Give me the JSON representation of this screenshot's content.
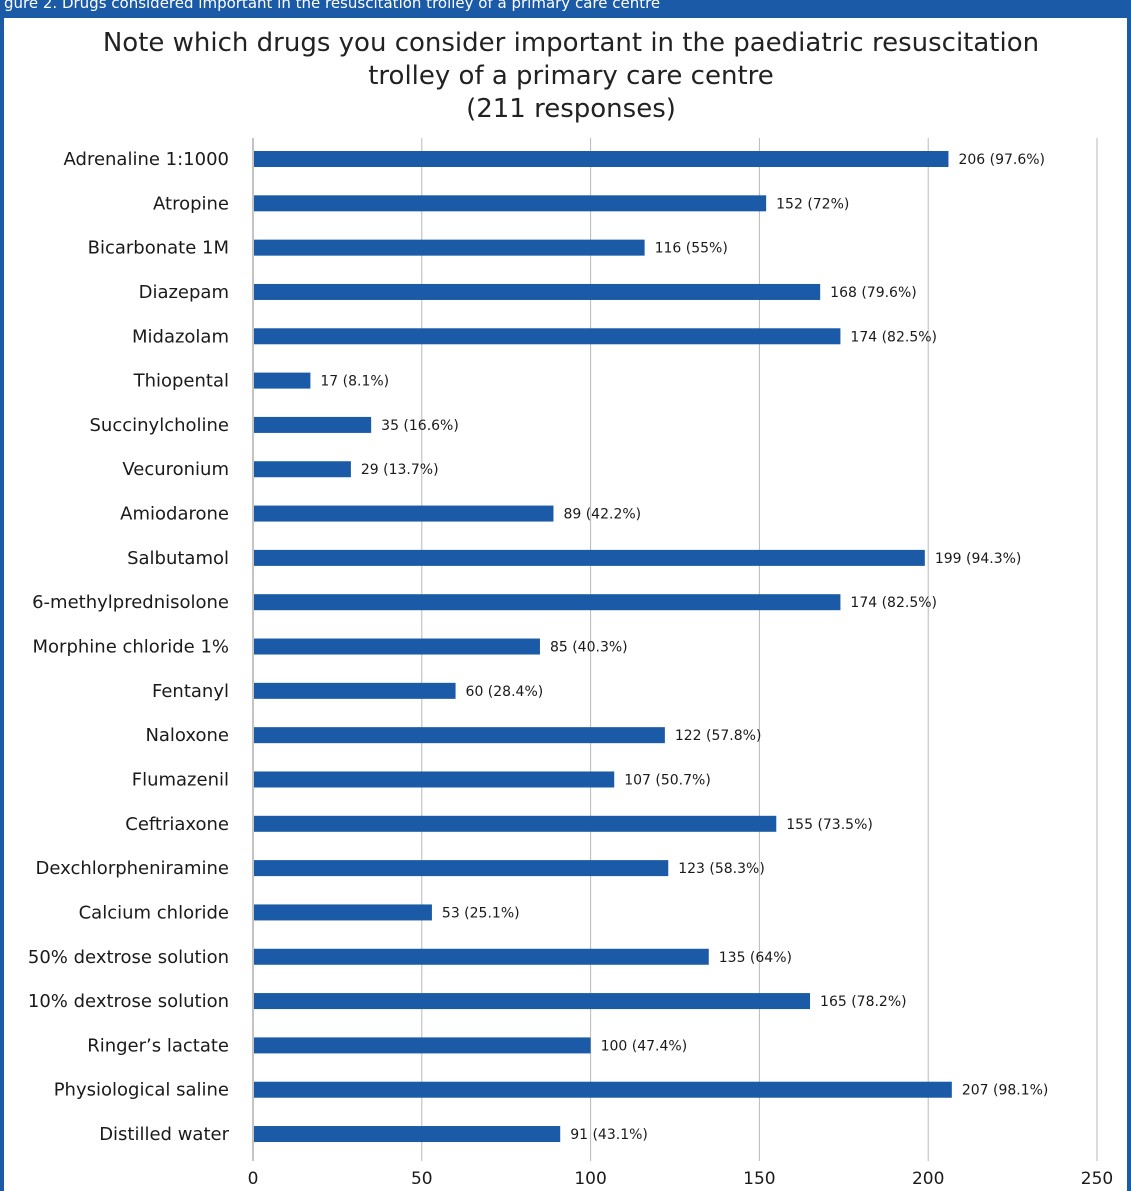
{
  "figure_caption": "gure 2. Drugs considered important in the resuscitation trolley of a primary care centre",
  "chart_data": {
    "type": "bar",
    "orientation": "horizontal",
    "title_lines": [
      "Note which drugs you consider important in the paediatric resuscitation",
      "trolley of a primary care centre",
      "(211 responses)"
    ],
    "categories": [
      "Adrenaline 1:1000",
      "Atropine",
      "Bicarbonate 1M",
      "Diazepam",
      "Midazolam",
      "Thiopental",
      "Succinylcholine",
      "Vecuronium",
      "Amiodarone",
      "Salbutamol",
      "6-methylprednisolone",
      "Morphine chloride 1%",
      "Fentanyl",
      "Naloxone",
      "Flumazenil",
      "Ceftriaxone",
      "Dexchlorpheniramine",
      "Calcium chloride",
      "50% dextrose solution",
      "10% dextrose solution",
      "Ringer’s lactate",
      "Physiological saline",
      "Distilled water"
    ],
    "values": [
      206,
      152,
      116,
      168,
      174,
      17,
      35,
      29,
      89,
      199,
      174,
      85,
      60,
      122,
      107,
      155,
      123,
      53,
      135,
      165,
      100,
      207,
      91
    ],
    "data_labels": [
      "206 (97.6%)",
      "152 (72%)",
      "116 (55%)",
      "168 (79.6%)",
      "174 (82.5%)",
      "17 (8.1%)",
      "35 (16.6%)",
      "29 (13.7%)",
      "89 (42.2%)",
      "199 (94.3%)",
      "174 (82.5%)",
      "85 (40.3%)",
      "60 (28.4%)",
      "122 (57.8%)",
      "107 (50.7%)",
      "155 (73.5%)",
      "123 (58.3%)",
      "53 (25.1%)",
      "135 (64%)",
      "165 (78.2%)",
      "100 (47.4%)",
      "207 (98.1%)",
      "91 (43.1%)"
    ],
    "xlim": [
      0,
      250
    ],
    "xticks": [
      0,
      50,
      100,
      150,
      200,
      250
    ],
    "grid": "vertical",
    "bar_color": "#1a5aa6",
    "xlabel": "",
    "ylabel": ""
  }
}
